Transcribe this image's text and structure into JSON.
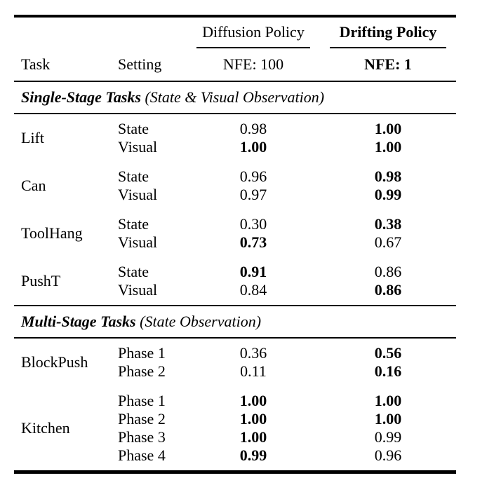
{
  "table": {
    "header": {
      "task_label": "Task",
      "setting_label": "Setting",
      "col_groups": [
        {
          "label": "Diffusion Policy",
          "bold": false,
          "sub_label": "NFE: 100",
          "sub_bold": false
        },
        {
          "label": "Drifting Policy",
          "bold": true,
          "sub_label": "NFE: 1",
          "sub_bold": true
        }
      ]
    },
    "colors": {
      "text": "#000000",
      "background": "#ffffff",
      "rule": "#000000"
    },
    "sections": [
      {
        "title": "Single-Stage Tasks",
        "subtitle": "(State & Visual Observation)",
        "groups": [
          {
            "task": "Lift",
            "rows": [
              {
                "setting": "State",
                "diffusion": {
                  "value": "0.98",
                  "bold": false
                },
                "drifting": {
                  "value": "1.00",
                  "bold": true
                }
              },
              {
                "setting": "Visual",
                "diffusion": {
                  "value": "1.00",
                  "bold": true
                },
                "drifting": {
                  "value": "1.00",
                  "bold": true
                }
              }
            ]
          },
          {
            "task": "Can",
            "rows": [
              {
                "setting": "State",
                "diffusion": {
                  "value": "0.96",
                  "bold": false
                },
                "drifting": {
                  "value": "0.98",
                  "bold": true
                }
              },
              {
                "setting": "Visual",
                "diffusion": {
                  "value": "0.97",
                  "bold": false
                },
                "drifting": {
                  "value": "0.99",
                  "bold": true
                }
              }
            ]
          },
          {
            "task": "ToolHang",
            "rows": [
              {
                "setting": "State",
                "diffusion": {
                  "value": "0.30",
                  "bold": false
                },
                "drifting": {
                  "value": "0.38",
                  "bold": true
                }
              },
              {
                "setting": "Visual",
                "diffusion": {
                  "value": "0.73",
                  "bold": true
                },
                "drifting": {
                  "value": "0.67",
                  "bold": false
                }
              }
            ]
          },
          {
            "task": "PushT",
            "rows": [
              {
                "setting": "State",
                "diffusion": {
                  "value": "0.91",
                  "bold": true
                },
                "drifting": {
                  "value": "0.86",
                  "bold": false
                }
              },
              {
                "setting": "Visual",
                "diffusion": {
                  "value": "0.84",
                  "bold": false
                },
                "drifting": {
                  "value": "0.86",
                  "bold": true
                }
              }
            ]
          }
        ]
      },
      {
        "title": "Multi-Stage Tasks",
        "subtitle": "(State Observation)",
        "groups": [
          {
            "task": "BlockPush",
            "rows": [
              {
                "setting": "Phase 1",
                "diffusion": {
                  "value": "0.36",
                  "bold": false
                },
                "drifting": {
                  "value": "0.56",
                  "bold": true
                }
              },
              {
                "setting": "Phase 2",
                "diffusion": {
                  "value": "0.11",
                  "bold": false
                },
                "drifting": {
                  "value": "0.16",
                  "bold": true
                }
              }
            ]
          },
          {
            "task": "Kitchen",
            "rows": [
              {
                "setting": "Phase 1",
                "diffusion": {
                  "value": "1.00",
                  "bold": true
                },
                "drifting": {
                  "value": "1.00",
                  "bold": true
                }
              },
              {
                "setting": "Phase 2",
                "diffusion": {
                  "value": "1.00",
                  "bold": true
                },
                "drifting": {
                  "value": "1.00",
                  "bold": true
                }
              },
              {
                "setting": "Phase 3",
                "diffusion": {
                  "value": "1.00",
                  "bold": true
                },
                "drifting": {
                  "value": "0.99",
                  "bold": false
                }
              },
              {
                "setting": "Phase 4",
                "diffusion": {
                  "value": "0.99",
                  "bold": true
                },
                "drifting": {
                  "value": "0.96",
                  "bold": false
                }
              }
            ]
          }
        ]
      }
    ]
  }
}
